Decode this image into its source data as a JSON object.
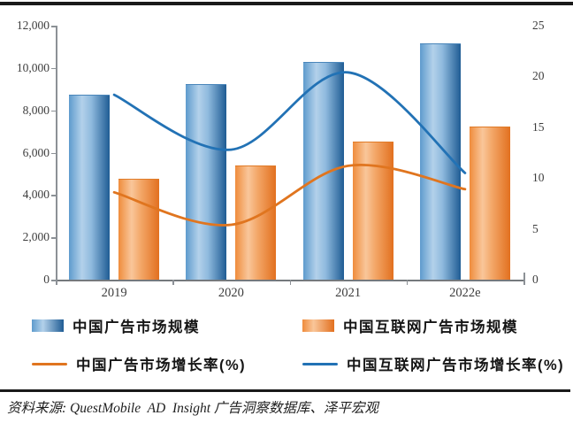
{
  "chart_data": {
    "type": "combo-bar-line",
    "categories": [
      "2019",
      "2020",
      "2021",
      "2022e"
    ],
    "series": [
      {
        "name": "中国广告市场规模",
        "type": "bar",
        "axis": "left",
        "color": "#2e75b6",
        "values": [
          8720,
          9220,
          10280,
          11180
        ]
      },
      {
        "name": "中国互联网广告市场规模",
        "type": "bar",
        "axis": "left",
        "color": "#ed7d31",
        "values": [
          4780,
          5410,
          6540,
          7250
        ]
      },
      {
        "name": "中国广告市场增长率(%)",
        "type": "line",
        "axis": "right",
        "color": "#e0751f",
        "values": [
          8.6,
          5.4,
          11.2,
          8.9
        ]
      },
      {
        "name": "中国互联网广告市场增长率(%)",
        "type": "line",
        "axis": "right",
        "color": "#2272b5",
        "values": [
          18.2,
          12.8,
          20.4,
          10.5
        ]
      }
    ],
    "left_axis": {
      "min": 0,
      "max": 12000,
      "step": 2000,
      "tick_labels": [
        "0",
        "2,000",
        "4,000",
        "6,000",
        "8,000",
        "10,000",
        "12,000"
      ]
    },
    "right_axis": {
      "min": 0,
      "max": 25,
      "step": 5,
      "tick_labels": [
        "0",
        "5",
        "10",
        "15",
        "20",
        "25"
      ]
    },
    "grid": false,
    "legend_position": "bottom",
    "title": ""
  },
  "footer": {
    "source_text": "资料来源: QuestMobile  AD  Insight 广告洞察数据库、泽平宏观"
  }
}
